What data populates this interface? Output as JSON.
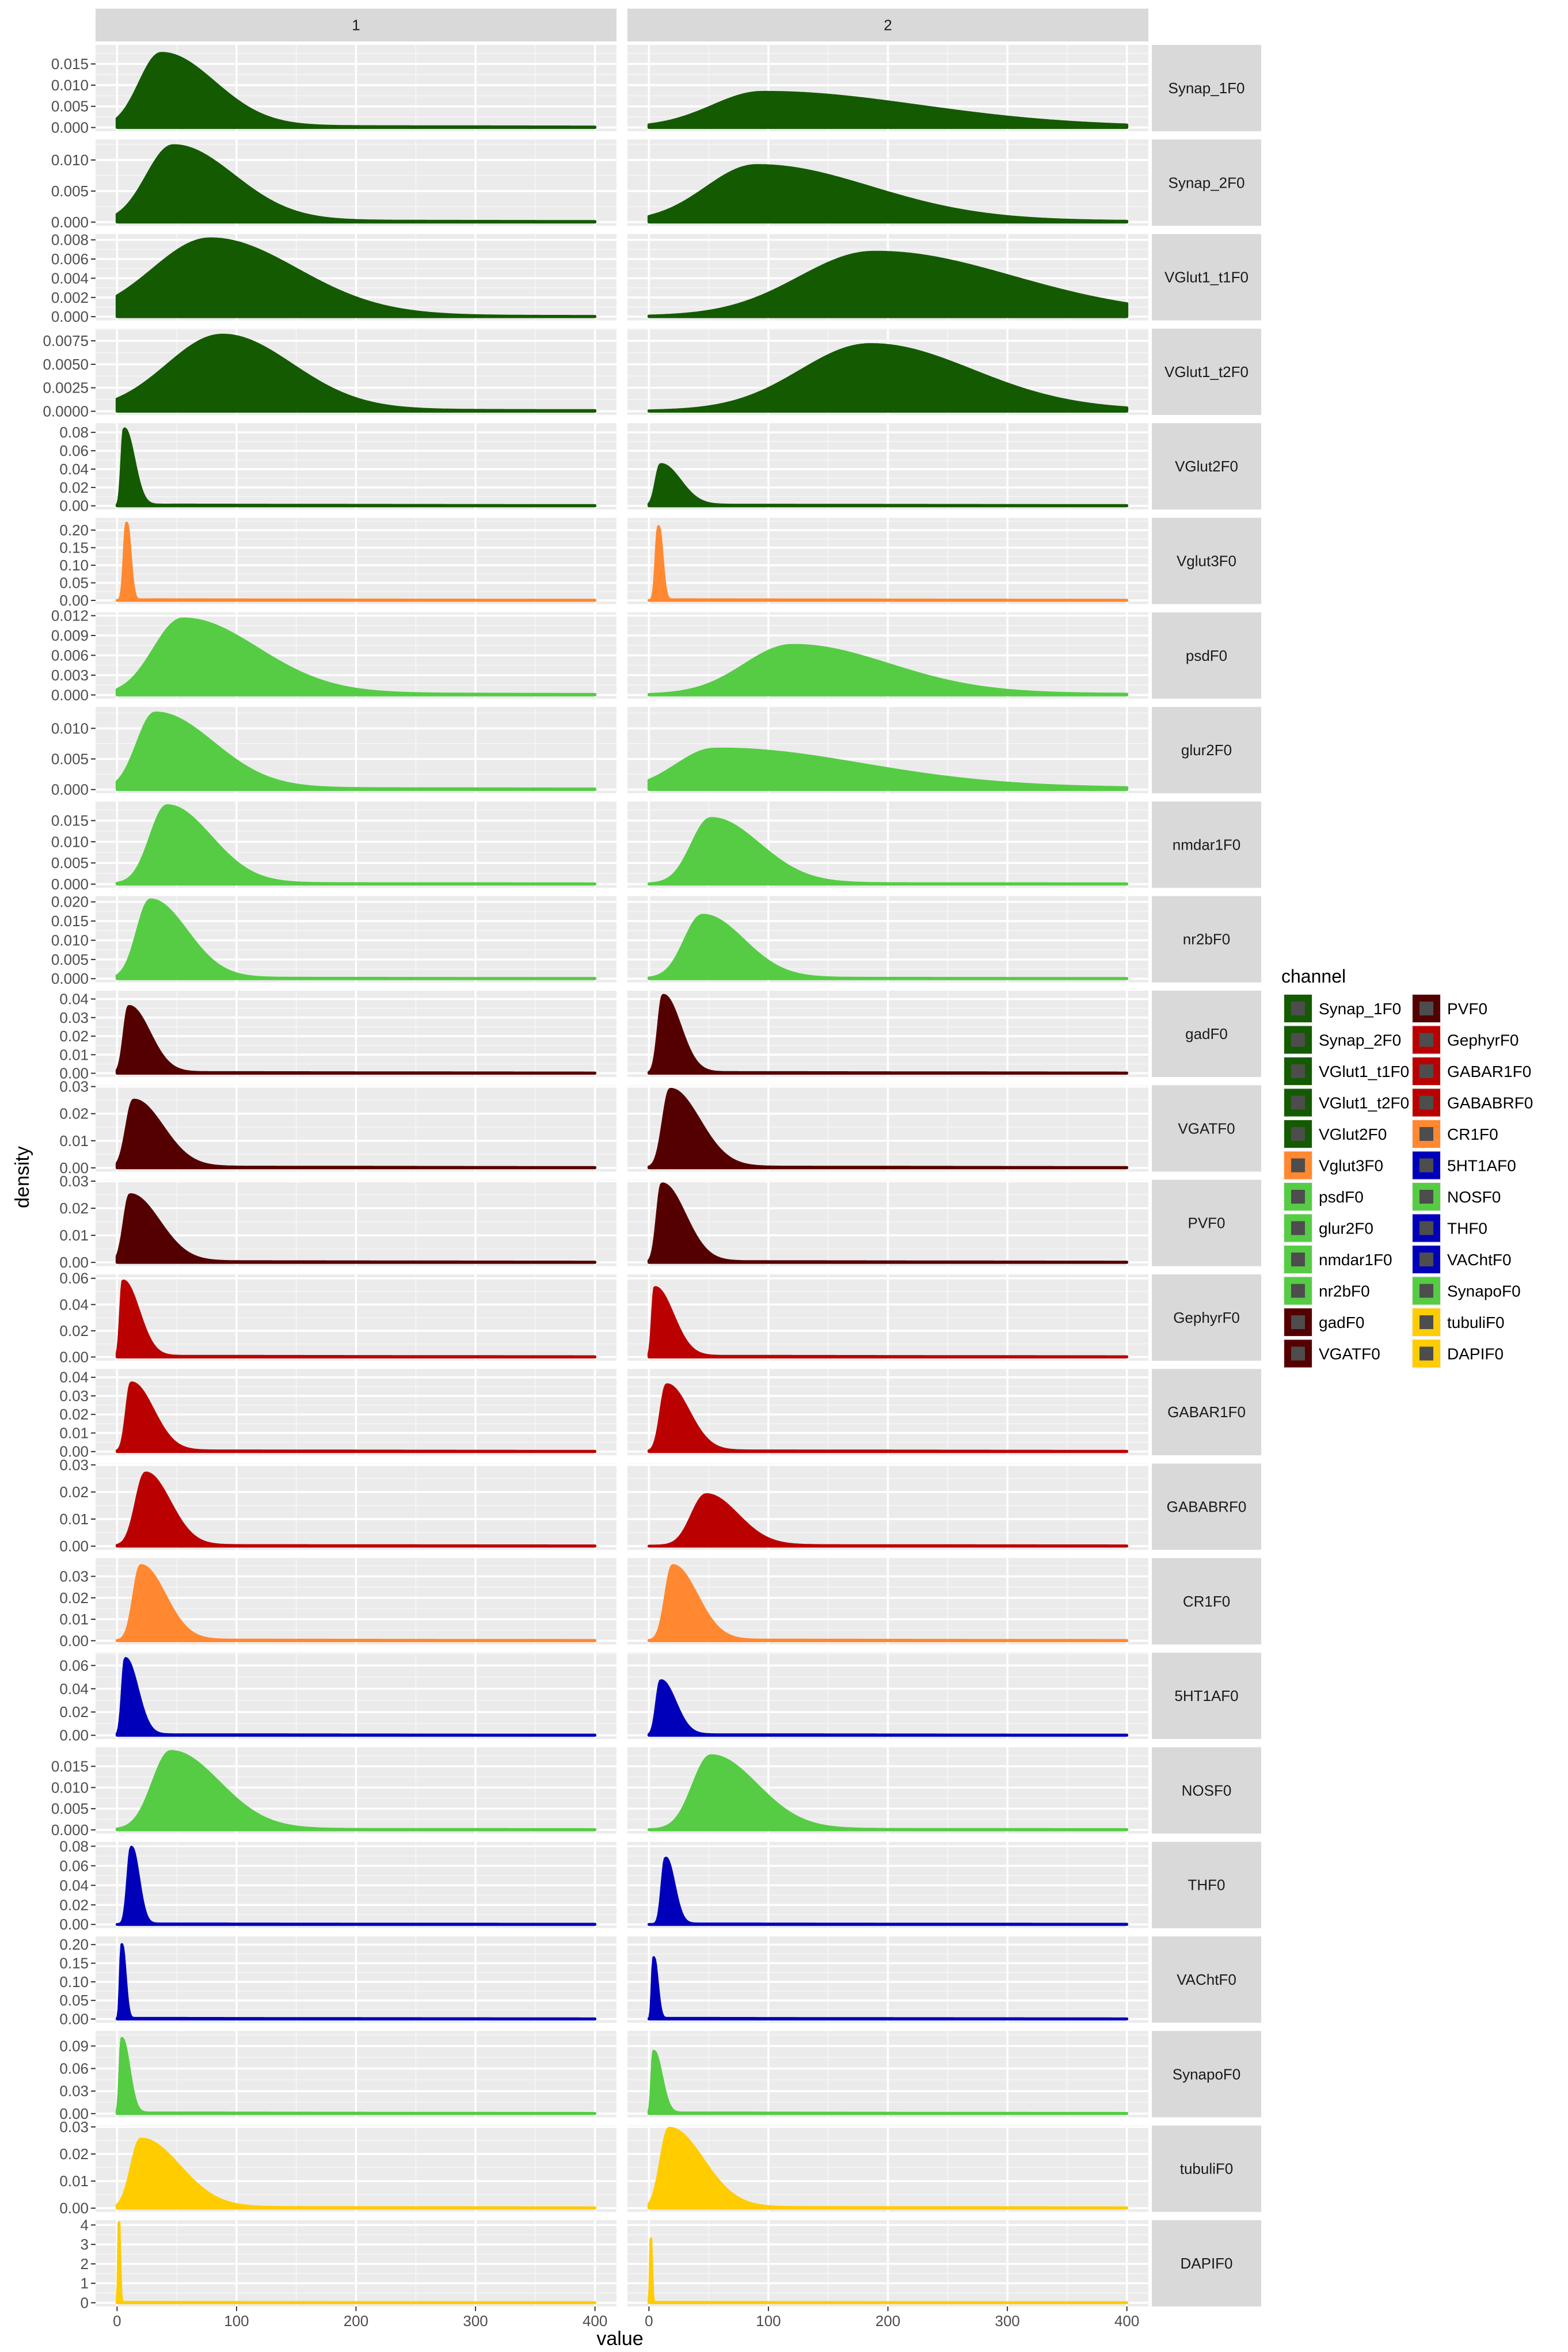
{
  "chart_data": {
    "type": "area",
    "title": "",
    "xlabel": "value",
    "ylabel": "density",
    "xlim": [
      0,
      400
    ],
    "xticks": [
      0,
      100,
      200,
      300,
      400
    ],
    "columns": [
      "1",
      "2"
    ],
    "legend_title": "channel",
    "legend_position": "right",
    "grid": true,
    "colors": {
      "dark_green": "#145A00",
      "light_green": "#55CC44",
      "orange": "#FF8830",
      "dark_red": "#550000",
      "red": "#BB0000",
      "blue": "#0000BB",
      "yellow": "#FFCC00"
    },
    "legend_items": [
      {
        "label": "Synap_1F0",
        "color": "#145A00"
      },
      {
        "label": "Synap_2F0",
        "color": "#145A00"
      },
      {
        "label": "VGlut1_t1F0",
        "color": "#145A00"
      },
      {
        "label": "VGlut1_t2F0",
        "color": "#145A00"
      },
      {
        "label": "VGlut2F0",
        "color": "#145A00"
      },
      {
        "label": "Vglut3F0",
        "color": "#FF8830"
      },
      {
        "label": "psdF0",
        "color": "#55CC44"
      },
      {
        "label": "glur2F0",
        "color": "#55CC44"
      },
      {
        "label": "nmdar1F0",
        "color": "#55CC44"
      },
      {
        "label": "nr2bF0",
        "color": "#55CC44"
      },
      {
        "label": "gadF0",
        "color": "#550000"
      },
      {
        "label": "VGATF0",
        "color": "#550000"
      },
      {
        "label": "PVF0",
        "color": "#550000"
      },
      {
        "label": "GephyrF0",
        "color": "#BB0000"
      },
      {
        "label": "GABAR1F0",
        "color": "#BB0000"
      },
      {
        "label": "GABABRF0",
        "color": "#BB0000"
      },
      {
        "label": "CR1F0",
        "color": "#FF8830"
      },
      {
        "label": "5HT1AF0",
        "color": "#0000BB"
      },
      {
        "label": "NOSF0",
        "color": "#55CC44"
      },
      {
        "label": "THF0",
        "color": "#0000BB"
      },
      {
        "label": "VAChtF0",
        "color": "#0000BB"
      },
      {
        "label": "SynapoF0",
        "color": "#55CC44"
      },
      {
        "label": "tubuliF0",
        "color": "#FFCC00"
      },
      {
        "label": "DAPIF0",
        "color": "#FFCC00"
      }
    ],
    "panels": [
      {
        "channel": "Synap_1F0",
        "color": "#145A00",
        "yticks": [
          0,
          0.005,
          0.01,
          0.015
        ],
        "ytick_labels": [
          "0.000",
          "0.005",
          "0.010",
          "0.015"
        ],
        "ymax": 0.0195,
        "curves": [
          {
            "peak": 37,
            "left_width": 18,
            "right_width": 44,
            "height": 0.0175,
            "start": 0,
            "tail": 0.0004
          },
          {
            "peak": 95,
            "left_width": 42,
            "right_width": 130,
            "height": 0.0083,
            "start": 0,
            "tail": 0.0003
          }
        ]
      },
      {
        "channel": "Synap_2F0",
        "color": "#145A00",
        "yticks": [
          0,
          0.005,
          0.01
        ],
        "ytick_labels": [
          "0.000",
          "0.005",
          "0.010"
        ],
        "ymax": 0.0133,
        "curves": [
          {
            "peak": 47,
            "left_width": 22,
            "right_width": 50,
            "height": 0.0123,
            "start": 0,
            "tail": 0.0003
          },
          {
            "peak": 90,
            "left_width": 42,
            "right_width": 95,
            "height": 0.0091,
            "start": 0,
            "tail": 0.0003
          }
        ]
      },
      {
        "channel": "VGlut1_t1F0",
        "color": "#145A00",
        "yticks": [
          0,
          0.002,
          0.004,
          0.006,
          0.008
        ],
        "ytick_labels": [
          "0.000",
          "0.002",
          "0.004",
          "0.006",
          "0.008"
        ],
        "ymax": 0.0086,
        "curves": [
          {
            "peak": 78,
            "left_width": 48,
            "right_width": 72,
            "height": 0.0081,
            "start": 0,
            "tail": 0.0001
          },
          {
            "peak": 188,
            "left_width": 62,
            "right_width": 115,
            "height": 0.0067,
            "start": 0,
            "tail": 0.0004
          }
        ]
      },
      {
        "channel": "VGlut1_t2F0",
        "color": "#145A00",
        "yticks": [
          0,
          0.0025,
          0.005,
          0.0075
        ],
        "ytick_labels": [
          "0.0000",
          "0.0025",
          "0.0050",
          "0.0075"
        ],
        "ymax": 0.0088,
        "curves": [
          {
            "peak": 88,
            "left_width": 46,
            "right_width": 58,
            "height": 0.0081,
            "start": 0,
            "tail": 0.0002
          },
          {
            "peak": 185,
            "left_width": 58,
            "right_width": 85,
            "height": 0.0071,
            "start": 0,
            "tail": 0.0002
          }
        ]
      },
      {
        "channel": "VGlut2F0",
        "color": "#145A00",
        "yticks": [
          0,
          0.02,
          0.04,
          0.06,
          0.08
        ],
        "ytick_labels": [
          "0.00",
          "0.02",
          "0.04",
          "0.06",
          "0.08"
        ],
        "ymax": 0.09,
        "curves": [
          {
            "peak": 6,
            "left_width": 2,
            "right_width": 8,
            "height": 0.084,
            "start": 0,
            "tail": 0.001
          },
          {
            "peak": 10,
            "left_width": 4,
            "right_width": 16,
            "height": 0.045,
            "start": 0,
            "tail": 0.001
          }
        ]
      },
      {
        "channel": "Vglut3F0",
        "color": "#FF8830",
        "yticks": [
          0,
          0.05,
          0.1,
          0.15,
          0.2
        ],
        "ytick_labels": [
          "0.00",
          "0.05",
          "0.10",
          "0.15",
          "0.20"
        ],
        "ymax": 0.235,
        "curves": [
          {
            "peak": 8,
            "left_width": 2,
            "right_width": 3,
            "height": 0.22,
            "start": 0,
            "tail": 0.002
          },
          {
            "peak": 8,
            "left_width": 2,
            "right_width": 3,
            "height": 0.21,
            "start": 0,
            "tail": 0.002
          }
        ]
      },
      {
        "channel": "psdF0",
        "color": "#55CC44",
        "yticks": [
          0,
          0.003,
          0.006,
          0.009,
          0.012
        ],
        "ytick_labels": [
          "0.000",
          "0.003",
          "0.006",
          "0.009",
          "0.012"
        ],
        "ymax": 0.0125,
        "curves": [
          {
            "peak": 55,
            "left_width": 24,
            "right_width": 62,
            "height": 0.0115,
            "start": 0,
            "tail": 0.0003
          },
          {
            "peak": 120,
            "left_width": 40,
            "right_width": 80,
            "height": 0.0075,
            "start": 0,
            "tail": 0.0003
          }
        ]
      },
      {
        "channel": "glur2F0",
        "color": "#55CC44",
        "yticks": [
          0,
          0.005,
          0.01
        ],
        "ytick_labels": [
          "0.000",
          "0.005",
          "0.010"
        ],
        "ymax": 0.0135,
        "curves": [
          {
            "peak": 32,
            "left_width": 15,
            "right_width": 48,
            "height": 0.0125,
            "start": 0,
            "tail": 0.0003
          },
          {
            "peak": 55,
            "left_width": 32,
            "right_width": 120,
            "height": 0.0066,
            "start": 0,
            "tail": 0.0008
          }
        ]
      },
      {
        "channel": "nmdar1F0",
        "color": "#55CC44",
        "yticks": [
          0,
          0.005,
          0.01,
          0.015
        ],
        "ytick_labels": [
          "0.000",
          "0.005",
          "0.010",
          "0.015"
        ],
        "ymax": 0.0195,
        "curves": [
          {
            "peak": 42,
            "left_width": 14,
            "right_width": 36,
            "height": 0.0185,
            "start": 0,
            "tail": 0.0002
          },
          {
            "peak": 52,
            "left_width": 16,
            "right_width": 40,
            "height": 0.0155,
            "start": 0,
            "tail": 0.0002
          }
        ]
      },
      {
        "channel": "nr2bF0",
        "color": "#55CC44",
        "yticks": [
          0,
          0.005,
          0.01,
          0.015,
          0.02
        ],
        "ytick_labels": [
          "0.000",
          "0.005",
          "0.010",
          "0.015",
          "0.020"
        ],
        "ymax": 0.0215,
        "curves": [
          {
            "peak": 28,
            "left_width": 11,
            "right_width": 30,
            "height": 0.0205,
            "start": 0,
            "tail": 0.0002
          },
          {
            "peak": 45,
            "left_width": 15,
            "right_width": 34,
            "height": 0.0165,
            "start": 0,
            "tail": 0.0002
          }
        ]
      },
      {
        "channel": "gadF0",
        "color": "#550000",
        "yticks": [
          0,
          0.01,
          0.02,
          0.03,
          0.04
        ],
        "ytick_labels": [
          "0.00",
          "0.01",
          "0.02",
          "0.03",
          "0.04"
        ],
        "ymax": 0.0445,
        "curves": [
          {
            "peak": 10,
            "left_width": 4,
            "right_width": 17,
            "height": 0.036,
            "start": 0,
            "tail": 0.0005
          },
          {
            "peak": 12,
            "left_width": 4,
            "right_width": 14,
            "height": 0.042,
            "start": 0,
            "tail": 0.0005
          }
        ]
      },
      {
        "channel": "VGATF0",
        "color": "#550000",
        "yticks": [
          0,
          0.01,
          0.02,
          0.03
        ],
        "ytick_labels": [
          "0.00",
          "0.01",
          "0.02",
          "0.03"
        ],
        "ymax": 0.0305,
        "curves": [
          {
            "peak": 14,
            "left_width": 6,
            "right_width": 24,
            "height": 0.025,
            "start": 0,
            "tail": 0.0004
          },
          {
            "peak": 18,
            "left_width": 6,
            "right_width": 24,
            "height": 0.029,
            "start": 0,
            "tail": 0.0004
          }
        ]
      },
      {
        "channel": "PVF0",
        "color": "#550000",
        "yticks": [
          0,
          0.01,
          0.02,
          0.03
        ],
        "ytick_labels": [
          "0.00",
          "0.01",
          "0.02",
          "0.03"
        ],
        "ymax": 0.0305,
        "curves": [
          {
            "peak": 11,
            "left_width": 5,
            "right_width": 24,
            "height": 0.025,
            "start": 0,
            "tail": 0.0004
          },
          {
            "peak": 11,
            "left_width": 4,
            "right_width": 19,
            "height": 0.029,
            "start": 0,
            "tail": 0.0004
          }
        ]
      },
      {
        "channel": "GephyrF0",
        "color": "#BB0000",
        "yticks": [
          0,
          0.02,
          0.04,
          0.06
        ],
        "ytick_labels": [
          "0.00",
          "0.02",
          "0.04",
          "0.06"
        ],
        "ymax": 0.063,
        "curves": [
          {
            "peak": 5,
            "left_width": 2,
            "right_width": 13,
            "height": 0.058,
            "start": 0,
            "tail": 0.0007
          },
          {
            "peak": 5,
            "left_width": 2,
            "right_width": 15,
            "height": 0.053,
            "start": 0,
            "tail": 0.0007
          }
        ]
      },
      {
        "channel": "GABAR1F0",
        "color": "#BB0000",
        "yticks": [
          0,
          0.01,
          0.02,
          0.03,
          0.04
        ],
        "ytick_labels": [
          "0.00",
          "0.01",
          "0.02",
          "0.03",
          "0.04"
        ],
        "ymax": 0.0445,
        "curves": [
          {
            "peak": 12,
            "left_width": 4,
            "right_width": 18,
            "height": 0.037,
            "start": 0,
            "tail": 0.0005
          },
          {
            "peak": 15,
            "left_width": 5,
            "right_width": 18,
            "height": 0.036,
            "start": 0,
            "tail": 0.0005
          }
        ]
      },
      {
        "channel": "GABABRF0",
        "color": "#BB0000",
        "yticks": [
          0,
          0.01,
          0.02,
          0.03
        ],
        "ytick_labels": [
          "0.00",
          "0.01",
          "0.02",
          "0.03"
        ],
        "ymax": 0.0305,
        "curves": [
          {
            "peak": 24,
            "left_width": 8,
            "right_width": 20,
            "height": 0.027,
            "start": 0,
            "tail": 0.0003
          },
          {
            "peak": 48,
            "left_width": 12,
            "right_width": 26,
            "height": 0.019,
            "start": 0,
            "tail": 0.0003
          }
        ]
      },
      {
        "channel": "CR1F0",
        "color": "#FF8830",
        "yticks": [
          0,
          0.01,
          0.02,
          0.03
        ],
        "ytick_labels": [
          "0.00",
          "0.01",
          "0.02",
          "0.03"
        ],
        "ymax": 0.0385,
        "curves": [
          {
            "peak": 20,
            "left_width": 6,
            "right_width": 20,
            "height": 0.035,
            "start": 0,
            "tail": 0.0004
          },
          {
            "peak": 20,
            "left_width": 6,
            "right_width": 20,
            "height": 0.035,
            "start": 0,
            "tail": 0.0004
          }
        ]
      },
      {
        "channel": "5HT1AF0",
        "color": "#0000BB",
        "yticks": [
          0,
          0.02,
          0.04,
          0.06
        ],
        "ytick_labels": [
          "0.00",
          "0.02",
          "0.04",
          "0.06"
        ],
        "ymax": 0.071,
        "curves": [
          {
            "peak": 7,
            "left_width": 2.5,
            "right_width": 10,
            "height": 0.066,
            "start": 0,
            "tail": 0.0006
          },
          {
            "peak": 10,
            "left_width": 3.5,
            "right_width": 12,
            "height": 0.047,
            "start": 0,
            "tail": 0.0006
          }
        ]
      },
      {
        "channel": "NOSF0",
        "color": "#55CC44",
        "yticks": [
          0,
          0.005,
          0.01,
          0.015
        ],
        "ytick_labels": [
          "0.000",
          "0.005",
          "0.010",
          "0.015"
        ],
        "ymax": 0.0195,
        "curves": [
          {
            "peak": 45,
            "left_width": 15,
            "right_width": 40,
            "height": 0.0185,
            "start": 0,
            "tail": 0.0002
          },
          {
            "peak": 52,
            "left_width": 15,
            "right_width": 38,
            "height": 0.0175,
            "start": 0,
            "tail": 0.0002
          }
        ]
      },
      {
        "channel": "THF0",
        "color": "#0000BB",
        "yticks": [
          0,
          0.02,
          0.04,
          0.06,
          0.08
        ],
        "ytick_labels": [
          "0.00",
          "0.02",
          "0.04",
          "0.06",
          "0.08"
        ],
        "ymax": 0.0845,
        "curves": [
          {
            "peak": 12,
            "left_width": 3,
            "right_width": 6,
            "height": 0.079,
            "start": 0,
            "tail": 0.0006
          },
          {
            "peak": 14,
            "left_width": 3,
            "right_width": 7,
            "height": 0.068,
            "start": 0,
            "tail": 0.0006
          }
        ]
      },
      {
        "channel": "VAChtF0",
        "color": "#0000BB",
        "yticks": [
          0,
          0.05,
          0.1,
          0.15,
          0.2
        ],
        "ytick_labels": [
          "0.00",
          "0.05",
          "0.10",
          "0.15",
          "0.20"
        ],
        "ymax": 0.222,
        "curves": [
          {
            "peak": 4,
            "left_width": 1.2,
            "right_width": 2.8,
            "height": 0.2,
            "start": 0,
            "tail": 0.002
          },
          {
            "peak": 4,
            "left_width": 1.2,
            "right_width": 3,
            "height": 0.165,
            "start": 0,
            "tail": 0.002
          }
        ]
      },
      {
        "channel": "SynapoF0",
        "color": "#55CC44",
        "yticks": [
          0,
          0.03,
          0.06,
          0.09
        ],
        "ytick_labels": [
          "0.00",
          "0.03",
          "0.06",
          "0.09"
        ],
        "ymax": 0.11,
        "curves": [
          {
            "peak": 4,
            "left_width": 1.5,
            "right_width": 6,
            "height": 0.1,
            "start": 0,
            "tail": 0.001
          },
          {
            "peak": 4,
            "left_width": 1.5,
            "right_width": 6.5,
            "height": 0.083,
            "start": 0,
            "tail": 0.001
          }
        ]
      },
      {
        "channel": "tubuliF0",
        "color": "#FFCC00",
        "yticks": [
          0,
          0.01,
          0.02,
          0.03
        ],
        "ytick_labels": [
          "0.00",
          "0.01",
          "0.02",
          "0.03"
        ],
        "ymax": 0.0305,
        "curves": [
          {
            "peak": 20,
            "left_width": 8,
            "right_width": 32,
            "height": 0.0255,
            "start": 0,
            "tail": 0.0004
          },
          {
            "peak": 17,
            "left_width": 7,
            "right_width": 28,
            "height": 0.0295,
            "start": 0,
            "tail": 0.0004
          }
        ]
      },
      {
        "channel": "DAPIF0",
        "color": "#FFCC00",
        "yticks": [
          0,
          1,
          2,
          3,
          4
        ],
        "ytick_labels": [
          "0",
          "1",
          "2",
          "3",
          "4"
        ],
        "ymax": 4.25,
        "curves": [
          {
            "peak": 1.5,
            "left_width": 0.4,
            "right_width": 0.8,
            "height": 4.15,
            "start": 0,
            "tail": 0.02
          },
          {
            "peak": 1.5,
            "left_width": 0.4,
            "right_width": 0.8,
            "height": 3.3,
            "start": 0,
            "tail": 0.02
          }
        ]
      }
    ]
  }
}
